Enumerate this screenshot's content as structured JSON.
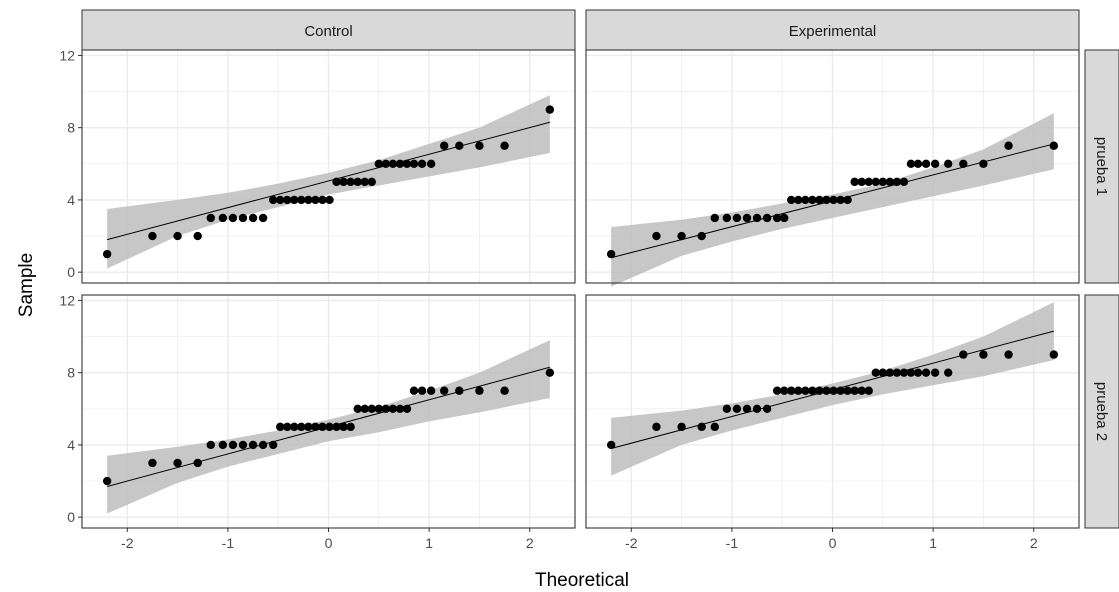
{
  "chart_data": {
    "type": "scatter",
    "facet_cols": [
      "Control",
      "Experimental"
    ],
    "facet_rows": [
      "prueba 1",
      "prueba 2"
    ],
    "xlabel": "Theoretical",
    "ylabel": "Sample",
    "xlim": [
      -2.45,
      2.45
    ],
    "ylim": [
      -0.6,
      12.3
    ],
    "x_ticks": [
      -2,
      -1,
      0,
      1,
      2
    ],
    "x_tick_labels": [
      "-2",
      "-1",
      "0",
      "1",
      "2"
    ],
    "y_ticks": [
      0,
      4,
      8,
      12
    ],
    "y_tick_labels": [
      "0",
      "4",
      "8",
      "12"
    ],
    "grid": true,
    "colors": {
      "points": "#000000",
      "line": "#000000",
      "band": "#bdbdbd",
      "strip_fill": "#d9d9d9",
      "grid": "#ebebeb",
      "border": "#333333"
    },
    "panels": [
      {
        "col": "Control",
        "row": "prueba 1",
        "x": [
          -2.2,
          -1.75,
          -1.5,
          -1.3,
          -1.17,
          -1.05,
          -0.95,
          -0.85,
          -0.75,
          -0.65,
          -0.55,
          -0.48,
          -0.41,
          -0.34,
          -0.27,
          -0.2,
          -0.13,
          -0.06,
          0.01,
          0.08,
          0.15,
          0.22,
          0.29,
          0.36,
          0.43,
          0.5,
          0.57,
          0.64,
          0.71,
          0.78,
          0.85,
          0.93,
          1.02,
          1.15,
          1.3,
          1.5,
          1.75,
          2.2
        ],
        "y": [
          1,
          2,
          2,
          2,
          3,
          3,
          3,
          3,
          3,
          3,
          4,
          4,
          4,
          4,
          4,
          4,
          4,
          4,
          4,
          5,
          5,
          5,
          5,
          5,
          5,
          6,
          6,
          6,
          6,
          6,
          6,
          6,
          6,
          7,
          7,
          7,
          7,
          9
        ],
        "line": [
          [
            -2.2,
            1.8
          ],
          [
            2.2,
            8.3
          ]
        ],
        "band_upper": [
          [
            -2.2,
            3.5
          ],
          [
            -1.5,
            4.0
          ],
          [
            -1.0,
            4.4
          ],
          [
            -0.5,
            4.9
          ],
          [
            0,
            5.5
          ],
          [
            0.5,
            6.2
          ],
          [
            1.0,
            7.1
          ],
          [
            1.5,
            8.0
          ],
          [
            2.2,
            9.8
          ]
        ],
        "band_lower": [
          [
            -2.2,
            0.2
          ],
          [
            -1.5,
            2.0
          ],
          [
            -1.0,
            2.9
          ],
          [
            -0.5,
            3.6
          ],
          [
            0,
            4.3
          ],
          [
            0.5,
            4.8
          ],
          [
            1.0,
            5.3
          ],
          [
            1.5,
            5.8
          ],
          [
            2.2,
            6.6
          ]
        ]
      },
      {
        "col": "Experimental",
        "row": "prueba 1",
        "x": [
          -2.2,
          -1.75,
          -1.5,
          -1.3,
          -1.17,
          -1.05,
          -0.95,
          -0.85,
          -0.75,
          -0.65,
          -0.55,
          -0.48,
          -0.41,
          -0.34,
          -0.27,
          -0.2,
          -0.13,
          -0.06,
          0.01,
          0.08,
          0.15,
          0.22,
          0.29,
          0.36,
          0.43,
          0.5,
          0.57,
          0.64,
          0.71,
          0.78,
          0.85,
          0.93,
          1.02,
          1.15,
          1.3,
          1.5,
          1.75,
          2.2
        ],
        "y": [
          1,
          2,
          2,
          2,
          3,
          3,
          3,
          3,
          3,
          3,
          3,
          3,
          4,
          4,
          4,
          4,
          4,
          4,
          4,
          4,
          4,
          5,
          5,
          5,
          5,
          5,
          5,
          5,
          5,
          6,
          6,
          6,
          6,
          6,
          6,
          6,
          7,
          7
        ],
        "line": [
          [
            -2.2,
            0.8
          ],
          [
            2.2,
            7.1
          ]
        ],
        "band_upper": [
          [
            -2.2,
            2.5
          ],
          [
            -1.5,
            2.9
          ],
          [
            -1.0,
            3.3
          ],
          [
            -0.5,
            3.8
          ],
          [
            0,
            4.3
          ],
          [
            0.5,
            4.9
          ],
          [
            1.0,
            5.8
          ],
          [
            1.5,
            6.8
          ],
          [
            2.2,
            8.8
          ]
        ],
        "band_lower": [
          [
            -2.2,
            -0.8
          ],
          [
            -1.5,
            0.9
          ],
          [
            -1.0,
            1.7
          ],
          [
            -0.5,
            2.4
          ],
          [
            0,
            3.0
          ],
          [
            0.5,
            3.6
          ],
          [
            1.0,
            4.2
          ],
          [
            1.5,
            4.8
          ],
          [
            2.2,
            5.7
          ]
        ]
      },
      {
        "col": "Control",
        "row": "prueba 2",
        "x": [
          -2.2,
          -1.75,
          -1.5,
          -1.3,
          -1.17,
          -1.05,
          -0.95,
          -0.85,
          -0.75,
          -0.65,
          -0.55,
          -0.48,
          -0.41,
          -0.34,
          -0.27,
          -0.2,
          -0.13,
          -0.06,
          0.01,
          0.08,
          0.15,
          0.22,
          0.29,
          0.36,
          0.43,
          0.5,
          0.57,
          0.64,
          0.71,
          0.78,
          0.85,
          0.93,
          1.02,
          1.15,
          1.3,
          1.5,
          1.75,
          2.2
        ],
        "y": [
          2,
          3,
          3,
          3,
          4,
          4,
          4,
          4,
          4,
          4,
          4,
          5,
          5,
          5,
          5,
          5,
          5,
          5,
          5,
          5,
          5,
          5,
          6,
          6,
          6,
          6,
          6,
          6,
          6,
          6,
          7,
          7,
          7,
          7,
          7,
          7,
          7,
          8
        ],
        "line": [
          [
            -2.2,
            1.7
          ],
          [
            2.2,
            8.3
          ]
        ],
        "band_upper": [
          [
            -2.2,
            3.4
          ],
          [
            -1.5,
            3.9
          ],
          [
            -1.0,
            4.3
          ],
          [
            -0.5,
            4.8
          ],
          [
            0,
            5.4
          ],
          [
            0.5,
            6.1
          ],
          [
            1.0,
            7.0
          ],
          [
            1.5,
            8.0
          ],
          [
            2.2,
            9.8
          ]
        ],
        "band_lower": [
          [
            -2.2,
            0.2
          ],
          [
            -1.5,
            1.9
          ],
          [
            -1.0,
            2.8
          ],
          [
            -0.5,
            3.5
          ],
          [
            0,
            4.2
          ],
          [
            0.5,
            4.7
          ],
          [
            1.0,
            5.3
          ],
          [
            1.5,
            5.8
          ],
          [
            2.2,
            6.6
          ]
        ]
      },
      {
        "col": "Experimental",
        "row": "prueba 2",
        "x": [
          -2.2,
          -1.75,
          -1.5,
          -1.3,
          -1.17,
          -1.05,
          -0.95,
          -0.85,
          -0.75,
          -0.65,
          -0.55,
          -0.48,
          -0.41,
          -0.34,
          -0.27,
          -0.2,
          -0.13,
          -0.06,
          0.01,
          0.08,
          0.15,
          0.22,
          0.29,
          0.36,
          0.43,
          0.5,
          0.57,
          0.64,
          0.71,
          0.78,
          0.85,
          0.93,
          1.02,
          1.15,
          1.3,
          1.5,
          1.75,
          2.2
        ],
        "y": [
          4,
          5,
          5,
          5,
          5,
          6,
          6,
          6,
          6,
          6,
          7,
          7,
          7,
          7,
          7,
          7,
          7,
          7,
          7,
          7,
          7,
          7,
          7,
          7,
          8,
          8,
          8,
          8,
          8,
          8,
          8,
          8,
          8,
          8,
          9,
          9,
          9,
          9
        ],
        "line": [
          [
            -2.2,
            3.8
          ],
          [
            2.2,
            10.3
          ]
        ],
        "band_upper": [
          [
            -2.2,
            5.5
          ],
          [
            -1.5,
            5.9
          ],
          [
            -1.0,
            6.3
          ],
          [
            -0.5,
            6.8
          ],
          [
            0,
            7.4
          ],
          [
            0.5,
            8.1
          ],
          [
            1.0,
            9.0
          ],
          [
            1.5,
            10.0
          ],
          [
            2.2,
            11.9
          ]
        ],
        "band_lower": [
          [
            -2.2,
            2.3
          ],
          [
            -1.5,
            4.0
          ],
          [
            -1.0,
            4.8
          ],
          [
            -0.5,
            5.5
          ],
          [
            0,
            6.2
          ],
          [
            0.5,
            6.8
          ],
          [
            1.0,
            7.3
          ],
          [
            1.5,
            7.8
          ],
          [
            2.2,
            8.7
          ]
        ]
      }
    ]
  }
}
